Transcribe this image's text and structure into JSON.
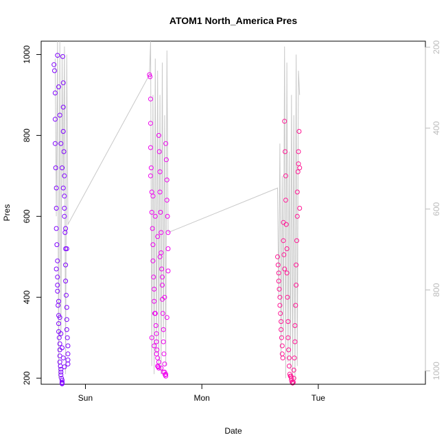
{
  "chart_data": {
    "type": "scatter",
    "title": "ATOM1 North_America Pres",
    "xlabel": "Date",
    "ylabel": "Pres",
    "x_ticks": [
      "Sun",
      "Mon",
      "Tue"
    ],
    "y_ticks": [
      200,
      400,
      600,
      800,
      1000
    ],
    "y_right_ticks": [
      200,
      400,
      600,
      800,
      1000
    ],
    "x_range_days": [
      -0.38,
      2.92
    ],
    "y_range": [
      185,
      1033
    ],
    "y_right_range": [
      1033,
      185
    ],
    "grid": false,
    "legend": "none",
    "colors": {
      "start": "#7f00ff",
      "mid": "#ee00ee",
      "end": "#ff1493",
      "line": "#c8c8c8",
      "axis": "#000000",
      "right_axis": "#bbbbbb"
    },
    "line_series": {
      "name": "",
      "x": [
        -0.26,
        -0.25,
        -0.24,
        -0.23,
        -0.22,
        -0.21,
        -0.2,
        -0.19,
        -0.18,
        -0.17,
        -0.16,
        -0.15,
        0.55,
        0.56,
        0.57,
        0.58,
        0.59,
        0.6,
        0.61,
        0.62,
        0.63,
        0.64,
        0.65,
        0.66,
        0.67,
        0.68,
        0.69,
        0.7,
        0.71,
        1.65,
        1.66,
        1.67,
        1.68,
        1.69,
        1.7,
        1.71,
        1.72,
        1.73,
        1.74,
        1.75,
        1.76,
        1.77,
        1.78,
        1.79,
        1.8,
        1.81,
        1.82,
        1.83,
        1.84
      ],
      "y": [
        990,
        600,
        1033,
        200,
        1033,
        300,
        1000,
        650,
        1020,
        210,
        1000,
        580,
        950,
        1033,
        230,
        900,
        210,
        990,
        260,
        960,
        230,
        900,
        210,
        980,
        300,
        850,
        230,
        1010,
        560,
        670,
        400,
        780,
        250,
        700,
        300,
        1020,
        200,
        980,
        240,
        760,
        220,
        900,
        200,
        850,
        190,
        1000,
        230,
        960,
        900
      ]
    },
    "series": [
      {
        "name": "",
        "x": [
          -0.27,
          -0.265,
          -0.26,
          -0.26,
          -0.26,
          -0.255,
          -0.25,
          -0.25,
          -0.25,
          -0.245,
          -0.24,
          -0.24,
          -0.24,
          -0.235,
          -0.23,
          -0.23,
          -0.23,
          -0.225,
          -0.22,
          -0.22,
          -0.22,
          -0.22,
          -0.215,
          -0.21,
          -0.21,
          -0.21,
          -0.205,
          -0.2,
          -0.2,
          -0.2,
          -0.2,
          -0.195,
          -0.19,
          -0.19,
          -0.19,
          -0.185,
          -0.18,
          -0.18,
          -0.18,
          -0.175,
          -0.17,
          -0.17,
          -0.17,
          -0.165,
          -0.16,
          -0.16,
          -0.16,
          -0.155,
          -0.15,
          -0.15,
          -0.15,
          -0.15,
          -0.24,
          -0.23,
          -0.22,
          -0.21,
          -0.2,
          -0.19,
          -0.18,
          -0.17,
          -0.16,
          -0.25,
          -0.24,
          -0.23,
          -0.22,
          -0.21,
          -0.2,
          -0.19,
          -0.18
        ],
        "y": [
          975,
          960,
          905,
          840,
          780,
          720,
          670,
          620,
          570,
          530,
          490,
          450,
          415,
          380,
          355,
          335,
          315,
          300,
          285,
          270,
          255,
          240,
          230,
          222,
          215,
          208,
          200,
          195,
          190,
          188,
          186,
          995,
          930,
          870,
          810,
          760,
          700,
          650,
          600,
          560,
          520,
          480,
          440,
          405,
          375,
          345,
          320,
          300,
          280,
          260,
          245,
          235,
          998,
          920,
          850,
          780,
          720,
          670,
          620,
          570,
          520,
          470,
          430,
          390,
          350,
          310,
          275,
          250,
          228
        ]
      },
      {
        "name": "",
        "x": [
          0.55,
          0.555,
          0.56,
          0.56,
          0.56,
          0.565,
          0.57,
          0.57,
          0.575,
          0.58,
          0.58,
          0.585,
          0.59,
          0.59,
          0.595,
          0.6,
          0.6,
          0.605,
          0.61,
          0.61,
          0.615,
          0.62,
          0.62,
          0.625,
          0.63,
          0.63,
          0.635,
          0.64,
          0.64,
          0.645,
          0.65,
          0.65,
          0.655,
          0.66,
          0.66,
          0.665,
          0.67,
          0.67,
          0.675,
          0.68,
          0.68,
          0.685,
          0.69,
          0.69,
          0.695,
          0.7,
          0.7,
          0.705,
          0.71,
          0.71,
          0.56,
          0.58,
          0.6,
          0.62,
          0.64,
          0.66,
          0.68,
          0.7,
          0.57,
          0.59,
          0.61,
          0.63,
          0.65,
          0.67,
          0.69,
          0.71
        ],
        "y": [
          950,
          945,
          890,
          830,
          770,
          720,
          660,
          610,
          570,
          530,
          490,
          450,
          420,
          390,
          360,
          360,
          360,
          330,
          310,
          290,
          270,
          250,
          230,
          228,
          225,
          800,
          760,
          710,
          660,
          610,
          560,
          510,
          470,
          430,
          395,
          360,
          320,
          290,
          260,
          235,
          215,
          208,
          205,
          780,
          740,
          690,
          640,
          600,
          560,
          520,
          700,
          650,
          600,
          550,
          500,
          450,
          400,
          350,
          300,
          280,
          260,
          240,
          225,
          215,
          210,
          465
        ]
      },
      {
        "name": "",
        "x": [
          1.65,
          1.655,
          1.66,
          1.66,
          1.665,
          1.67,
          1.67,
          1.675,
          1.68,
          1.68,
          1.685,
          1.69,
          1.69,
          1.695,
          1.7,
          1.7,
          1.705,
          1.71,
          1.71,
          1.715,
          1.72,
          1.72,
          1.725,
          1.73,
          1.73,
          1.735,
          1.74,
          1.74,
          1.745,
          1.75,
          1.75,
          1.755,
          1.76,
          1.76,
          1.765,
          1.77,
          1.77,
          1.775,
          1.78,
          1.78,
          1.785,
          1.79,
          1.79,
          1.795,
          1.8,
          1.8,
          1.805,
          1.81,
          1.81,
          1.815,
          1.82,
          1.82,
          1.825,
          1.83,
          1.83,
          1.835,
          1.84,
          1.84
        ],
        "y": [
          500,
          480,
          460,
          440,
          420,
          400,
          380,
          360,
          340,
          320,
          300,
          280,
          260,
          250,
          585,
          540,
          505,
          470,
          835,
          760,
          700,
          640,
          580,
          520,
          460,
          400,
          340,
          300,
          270,
          250,
          230,
          210,
          205,
          205,
          205,
          200,
          195,
          190,
          188,
          188,
          190,
          200,
          220,
          250,
          290,
          330,
          380,
          430,
          480,
          540,
          600,
          660,
          710,
          730,
          760,
          810,
          720,
          620
        ]
      }
    ]
  }
}
